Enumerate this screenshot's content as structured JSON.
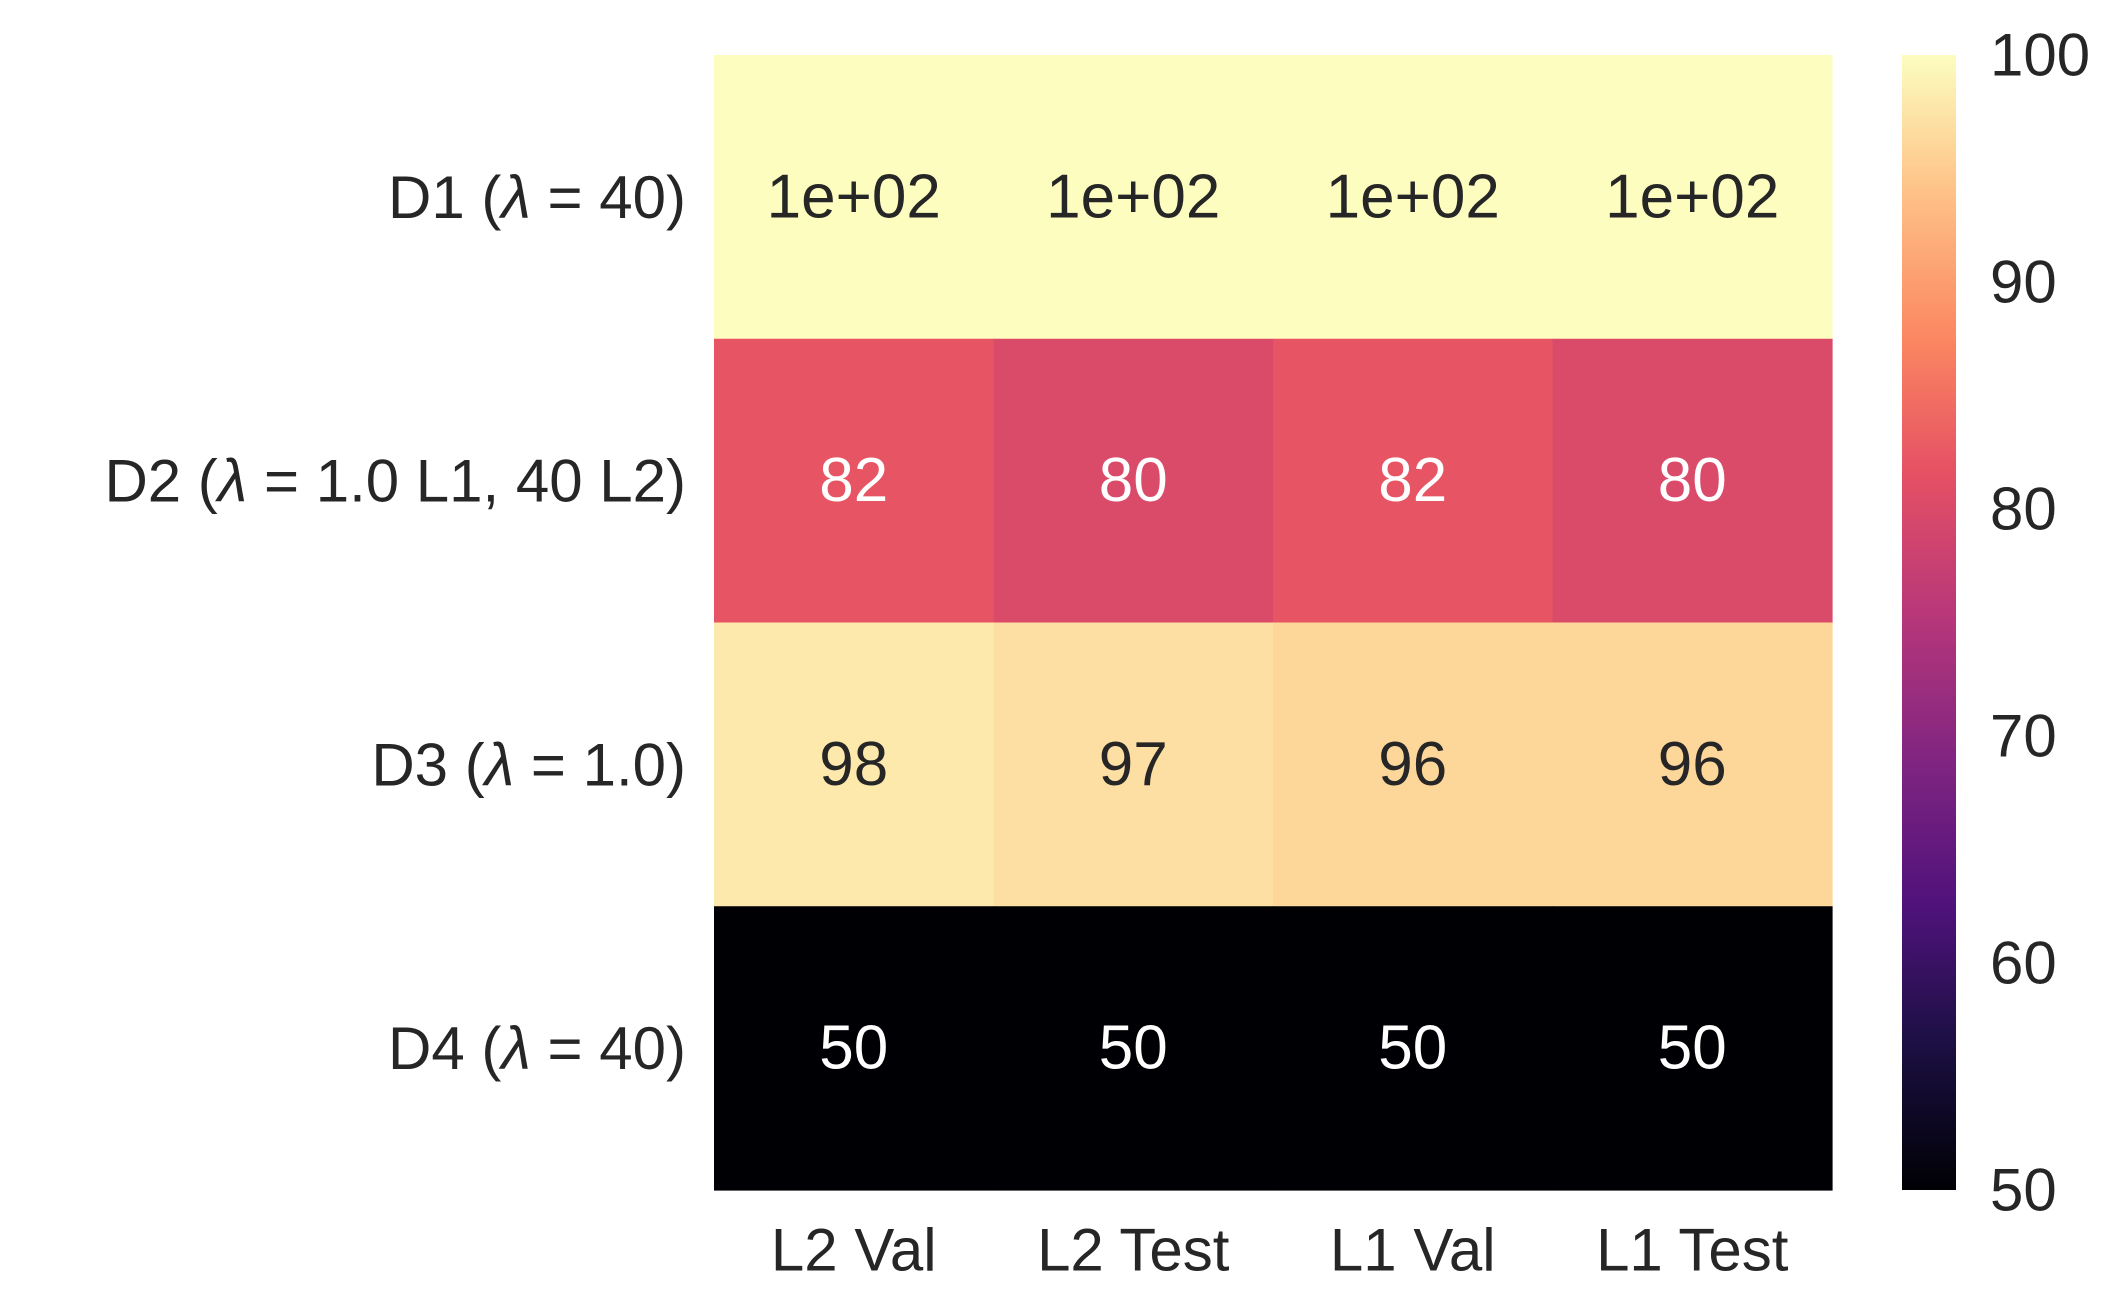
{
  "chart_data": {
    "type": "heatmap",
    "title": "",
    "xlabel": "",
    "ylabel": "",
    "columns": [
      "L2 Val",
      "L2 Test",
      "L1 Val",
      "L1 Test"
    ],
    "rows": [
      {
        "prefix": "D1 (",
        "symbol": "λ",
        "suffix": " = 40)"
      },
      {
        "prefix": "D2 (",
        "symbol": "λ",
        "suffix": " = 1.0 L1, 40 L2)"
      },
      {
        "prefix": "D3 (",
        "symbol": "λ",
        "suffix": " = 1.0)"
      },
      {
        "prefix": "D4 (",
        "symbol": "λ",
        "suffix": " = 40)"
      }
    ],
    "values": [
      [
        100,
        100,
        100,
        100
      ],
      [
        82,
        80,
        82,
        80
      ],
      [
        98,
        97,
        96,
        96
      ],
      [
        50,
        50,
        50,
        50
      ]
    ],
    "annotations": [
      [
        "1e+02",
        "1e+02",
        "1e+02",
        "1e+02"
      ],
      [
        "82",
        "80",
        "82",
        "80"
      ],
      [
        "98",
        "97",
        "96",
        "96"
      ],
      [
        "50",
        "50",
        "50",
        "50"
      ]
    ],
    "colormap": "magma",
    "vmin": 50,
    "vmax": 100,
    "colorbar": {
      "ticks": [
        50,
        60,
        70,
        80,
        90,
        100
      ],
      "tick_labels": [
        "50",
        "60",
        "70",
        "80",
        "90",
        "100"
      ],
      "position": "right"
    },
    "annotation_colors": {
      "dark_text": "#262626",
      "light_text": "#ffffff"
    }
  }
}
